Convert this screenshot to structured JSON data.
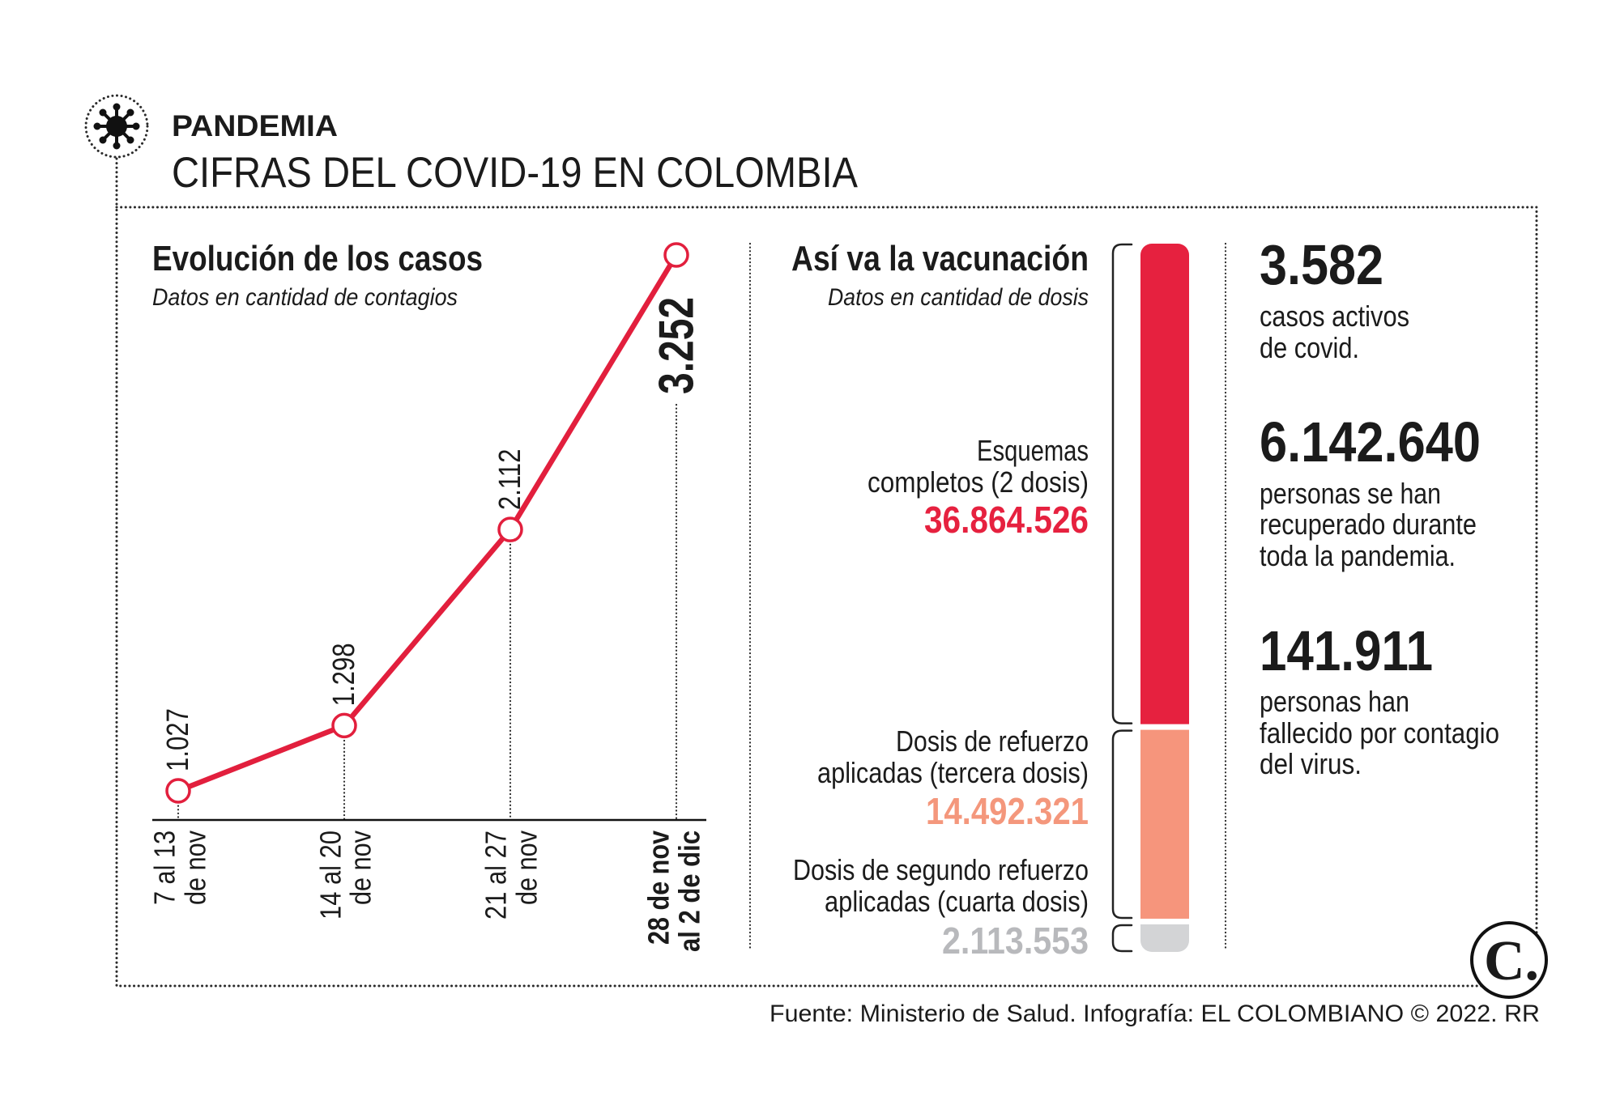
{
  "header": {
    "icon": "virus-icon",
    "kicker": "PANDEMIA",
    "title": "CIFRAS DEL COVID-19 EN COLOMBIA"
  },
  "chart_data": [
    {
      "type": "line",
      "title": "Evolución de los casos",
      "subtitle": "Datos en cantidad de contagios",
      "categories": [
        [
          "7 al 13",
          "de nov"
        ],
        [
          "14 al 20",
          "de nov"
        ],
        [
          "21 al 27",
          "de nov"
        ],
        [
          "28 de nov",
          "al 2 de dic"
        ]
      ],
      "values": [
        1027,
        1298,
        2112,
        3252
      ],
      "value_labels": [
        "1.027",
        "1.298",
        "2.112",
        "3.252"
      ],
      "color": "#e21f3d"
    },
    {
      "type": "bar",
      "stacked": true,
      "title": "Así va la vacunación",
      "subtitle": "Datos en cantidad de dosis",
      "segments": [
        {
          "label": [
            "Esquemas",
            "completos (2 dosis)"
          ],
          "value": 36864526,
          "value_label": "36.864.526",
          "color": "#e6213f",
          "label_color": "#e6213f"
        },
        {
          "label": [
            "Dosis de refuerzo",
            "aplicadas (tercera dosis)"
          ],
          "value": 14492321,
          "value_label": "14.492.321",
          "color": "#f6957c",
          "label_color": "#f4977c"
        },
        {
          "label": [
            "Dosis de segundo refuerzo",
            "aplicadas (cuarta dosis)"
          ],
          "value": 2113553,
          "value_label": "2.113.553",
          "color": "#d3d4d6",
          "label_color": "#b8b9bc"
        }
      ]
    }
  ],
  "stats": [
    {
      "value": "3.582",
      "text": [
        "casos activos",
        "de covid."
      ]
    },
    {
      "value": "6.142.640",
      "text": [
        "personas se han",
        "recuperado durante",
        "toda la pandemia."
      ]
    },
    {
      "value": "141.911",
      "text": [
        "personas han",
        "fallecido por contagio",
        "del virus."
      ]
    }
  ],
  "logo": {
    "icon": "el-colombiano-logo",
    "text": "C."
  },
  "footer": {
    "source": "Fuente: Ministerio de Salud. Infografía: EL COLOMBIANO © 2022. RR"
  }
}
